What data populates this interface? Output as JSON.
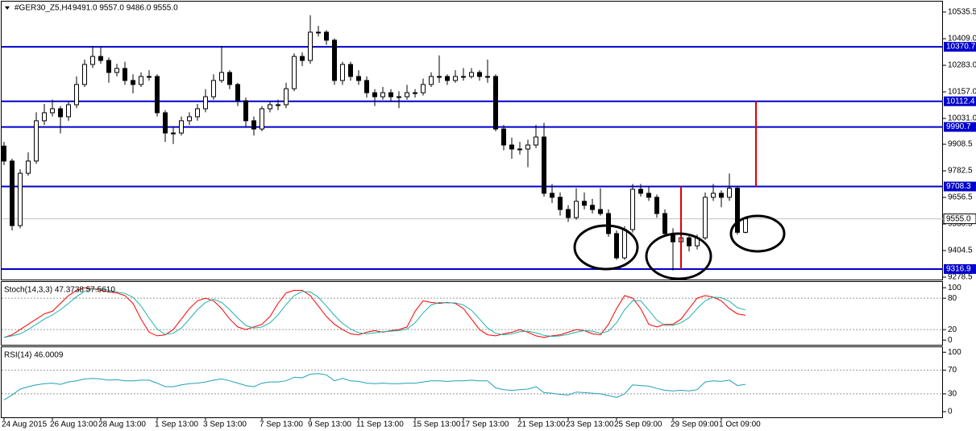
{
  "chart_data": [
    {
      "type": "candlestick",
      "title": "#GER30_Z5,H4",
      "ohlc_label": "9491.0 9557.0 9486.0 9555.0",
      "categories": [
        "24 Aug 2015",
        null,
        null,
        null,
        null,
        null,
        "26 Aug 13:00",
        null,
        null,
        null,
        null,
        null,
        "28 Aug 13:00",
        null,
        null,
        null,
        null,
        null,
        null,
        "1 Sep 13:00",
        null,
        null,
        null,
        null,
        null,
        "3 Sep 13:00",
        null,
        null,
        null,
        null,
        null,
        null,
        "7 Sep 13:00",
        null,
        null,
        null,
        null,
        null,
        "9 Sep 13:00",
        null,
        null,
        null,
        null,
        null,
        "11 Sep 13:00",
        null,
        null,
        null,
        null,
        null,
        null,
        "15 Sep 13:00",
        null,
        null,
        null,
        null,
        null,
        "17 Sep 13:00",
        null,
        null,
        null,
        null,
        null,
        null,
        "21 Sep 13:00",
        null,
        null,
        null,
        null,
        null,
        "23 Sep 13:00",
        null,
        null,
        null,
        null,
        null,
        "25 Sep 09:00",
        null,
        null,
        null,
        null,
        null,
        null,
        "29 Sep 09:00",
        null,
        null,
        null,
        null,
        null,
        "1 Oct 09:00",
        null,
        null,
        null
      ],
      "ohlc": [
        [
          9900,
          9920,
          9810,
          9829
        ],
        [
          9829,
          9840,
          9500,
          9523
        ],
        [
          9523,
          9790,
          9510,
          9771
        ],
        [
          9771,
          9870,
          9760,
          9829
        ],
        [
          9829,
          10060,
          9815,
          10020
        ],
        [
          10020,
          10100,
          10000,
          10058
        ],
        [
          10058,
          10120,
          10040,
          10077
        ],
        [
          10077,
          10090,
          9960,
          10039
        ],
        [
          10039,
          10110,
          10020,
          10096
        ],
        [
          10096,
          10230,
          10080,
          10192
        ],
        [
          10192,
          10310,
          10180,
          10287
        ],
        [
          10287,
          10375,
          10270,
          10325
        ],
        [
          10325,
          10370,
          10290,
          10306
        ],
        [
          10306,
          10320,
          10200,
          10249
        ],
        [
          10249,
          10290,
          10230,
          10268
        ],
        [
          10268,
          10300,
          10190,
          10211
        ],
        [
          10211,
          10240,
          10150,
          10192
        ],
        [
          10192,
          10250,
          10180,
          10230
        ],
        [
          10230,
          10260,
          10210,
          10230
        ],
        [
          10230,
          10240,
          10040,
          10058
        ],
        [
          10058,
          10070,
          9920,
          9962
        ],
        [
          9962,
          9990,
          9910,
          9962
        ],
        [
          9962,
          10040,
          9950,
          10020
        ],
        [
          10020,
          10060,
          10000,
          10039
        ],
        [
          10039,
          10100,
          10020,
          10077
        ],
        [
          10077,
          10170,
          10060,
          10134
        ],
        [
          10134,
          10240,
          10120,
          10211
        ],
        [
          10211,
          10375,
          10200,
          10249
        ],
        [
          10249,
          10260,
          10170,
          10192
        ],
        [
          10192,
          10200,
          10090,
          10115
        ],
        [
          10115,
          10130,
          9990,
          10020
        ],
        [
          10020,
          10040,
          9950,
          9981
        ],
        [
          9981,
          10090,
          9970,
          10077
        ],
        [
          10077,
          10110,
          10060,
          10096
        ],
        [
          10096,
          10120,
          10070,
          10096
        ],
        [
          10096,
          10200,
          10080,
          10172
        ],
        [
          10172,
          10340,
          10160,
          10325
        ],
        [
          10325,
          10345,
          10280,
          10306
        ],
        [
          10306,
          10520,
          10290,
          10440
        ],
        [
          10440,
          10470,
          10420,
          10440
        ],
        [
          10440,
          10450,
          10380,
          10402
        ],
        [
          10402,
          10410,
          10190,
          10211
        ],
        [
          10211,
          10300,
          10190,
          10287
        ],
        [
          10287,
          10300,
          10210,
          10230
        ],
        [
          10230,
          10260,
          10190,
          10211
        ],
        [
          10211,
          10230,
          10130,
          10153
        ],
        [
          10153,
          10170,
          10090,
          10134
        ],
        [
          10134,
          10180,
          10120,
          10153
        ],
        [
          10153,
          10170,
          10110,
          10134
        ],
        [
          10134,
          10160,
          10080,
          10134
        ],
        [
          10134,
          10190,
          10120,
          10153
        ],
        [
          10153,
          10170,
          10130,
          10153
        ],
        [
          10153,
          10220,
          10140,
          10192
        ],
        [
          10192,
          10250,
          10180,
          10230
        ],
        [
          10230,
          10330,
          10200,
          10230
        ],
        [
          10230,
          10240,
          10190,
          10211
        ],
        [
          10211,
          10260,
          10200,
          10230
        ],
        [
          10230,
          10270,
          10210,
          10230
        ],
        [
          10230,
          10270,
          10220,
          10249
        ],
        [
          10249,
          10260,
          10210,
          10230
        ],
        [
          10230,
          10310,
          10200,
          10230
        ],
        [
          10230,
          10240,
          9970,
          9981
        ],
        [
          9981,
          10000,
          9880,
          9905
        ],
        [
          9905,
          9940,
          9840,
          9886
        ],
        [
          9886,
          9920,
          9860,
          9886
        ],
        [
          9886,
          9930,
          9800,
          9905
        ],
        [
          9905,
          10000,
          9890,
          9943
        ],
        [
          9943,
          10010,
          9660,
          9676
        ],
        [
          9676,
          9720,
          9630,
          9657
        ],
        [
          9657,
          9680,
          9570,
          9599
        ],
        [
          9599,
          9620,
          9540,
          9561
        ],
        [
          9561,
          9700,
          9550,
          9638
        ],
        [
          9638,
          9680,
          9600,
          9619
        ],
        [
          9619,
          9650,
          9580,
          9599
        ],
        [
          9599,
          9700,
          9570,
          9580
        ],
        [
          9580,
          9600,
          9470,
          9485
        ],
        [
          9485,
          9500,
          9360,
          9370
        ],
        [
          9370,
          9520,
          9360,
          9504
        ],
        [
          9504,
          9720,
          9490,
          9695
        ],
        [
          9695,
          9720,
          9660,
          9676
        ],
        [
          9676,
          9710,
          9640,
          9657
        ],
        [
          9657,
          9670,
          9560,
          9580
        ],
        [
          9580,
          9600,
          9470,
          9485
        ],
        [
          9485,
          9510,
          9310,
          9446
        ],
        [
          9446,
          9500,
          9430,
          9465
        ],
        [
          9465,
          9480,
          9400,
          9427
        ],
        [
          9427,
          9480,
          9410,
          9465
        ],
        [
          9465,
          9680,
          9455,
          9657
        ],
        [
          9657,
          9720,
          9640,
          9676
        ],
        [
          9676,
          9690,
          9610,
          9657
        ],
        [
          9657,
          9770,
          9640,
          9700
        ],
        [
          9700,
          9710,
          9480,
          9491
        ],
        [
          9491,
          9557,
          9486,
          9555
        ]
      ],
      "ylim": [
        9267,
        10585
      ],
      "yticks": [
        10535.5,
        {
          "value": 10409,
          "label": "10409.0"
        },
        {
          "value": 10283,
          "label": "10283.0"
        },
        {
          "value": 10157,
          "label": "10157.0"
        },
        {
          "value": 10031,
          "label": "10031.0"
        },
        9908.5,
        9782.5,
        9656.5,
        9530.5,
        9404.5,
        9278.5
      ],
      "levels": [
        10370.7,
        10112.4,
        9990.7,
        9708.3,
        9316.9
      ],
      "level_color": "#0000cc",
      "current_price": {
        "value": 9555,
        "label": "9555.0"
      }
    },
    {
      "type": "line",
      "title": "Stoch(14,3,3) 47.3738 57.5610",
      "ylim": [
        -9,
        111
      ],
      "yticks": [
        100,
        80,
        20,
        0
      ],
      "levels": [
        80,
        20
      ],
      "series": [
        {
          "name": "Main",
          "color": "#ff0000",
          "values": [
            5,
            10,
            20,
            30,
            40,
            50,
            55,
            70,
            85,
            95,
            100,
            98,
            95,
            92,
            90,
            85,
            70,
            40,
            15,
            8,
            10,
            20,
            40,
            60,
            75,
            80,
            75,
            60,
            40,
            25,
            20,
            25,
            30,
            45,
            70,
            90,
            95,
            95,
            85,
            65,
            45,
            30,
            20,
            12,
            10,
            15,
            18,
            15,
            18,
            20,
            25,
            55,
            75,
            72,
            70,
            72,
            70,
            60,
            40,
            20,
            10,
            8,
            12,
            15,
            20,
            15,
            8,
            5,
            8,
            10,
            15,
            20,
            18,
            12,
            10,
            30,
            60,
            85,
            80,
            60,
            30,
            25,
            30,
            30,
            40,
            60,
            80,
            85,
            82,
            75,
            60,
            50,
            47.3738
          ]
        },
        {
          "name": "Signal",
          "color": "#20b2aa",
          "values": [
            5,
            8,
            12,
            20,
            30,
            40,
            48,
            58,
            70,
            83,
            93,
            98,
            98,
            95,
            92,
            89,
            82,
            65,
            42,
            21,
            11,
            13,
            23,
            40,
            58,
            72,
            78,
            72,
            58,
            42,
            28,
            23,
            25,
            33,
            48,
            68,
            85,
            93,
            92,
            82,
            65,
            47,
            32,
            21,
            14,
            12,
            14,
            16,
            17,
            18,
            21,
            33,
            52,
            67,
            72,
            71,
            71,
            67,
            57,
            40,
            23,
            13,
            10,
            12,
            16,
            17,
            14,
            9,
            7,
            8,
            11,
            15,
            18,
            17,
            13,
            17,
            33,
            58,
            75,
            75,
            57,
            38,
            28,
            28,
            33,
            43,
            60,
            75,
            82,
            81,
            74,
            62,
            57.561
          ]
        }
      ]
    },
    {
      "type": "line",
      "title": "RSI(14) 46.0009",
      "ylim": [
        -9.5,
        108.5
      ],
      "yticks": [
        100,
        70,
        30,
        0
      ],
      "levels": [
        70,
        30
      ],
      "series": [
        {
          "name": "RSI",
          "color": "#20a0b8",
          "values": [
            20,
            28,
            38,
            42,
            45,
            47,
            48,
            46,
            50,
            52,
            55,
            56,
            55,
            53,
            54,
            52,
            52,
            53,
            53,
            48,
            42,
            42,
            45,
            47,
            48,
            50,
            53,
            55,
            52,
            48,
            44,
            42,
            48,
            50,
            50,
            52,
            58,
            57,
            63,
            64,
            62,
            52,
            56,
            52,
            51,
            48,
            47,
            48,
            47,
            47,
            48,
            48,
            50,
            52,
            52,
            51,
            52,
            52,
            53,
            52,
            52,
            40,
            37,
            36,
            37,
            38,
            42,
            32,
            31,
            29,
            28,
            33,
            32,
            31,
            30,
            27,
            24,
            30,
            45,
            44,
            43,
            39,
            36,
            35,
            36,
            35,
            37,
            50,
            52,
            51,
            53,
            44,
            46.0009
          ]
        }
      ]
    }
  ]
}
